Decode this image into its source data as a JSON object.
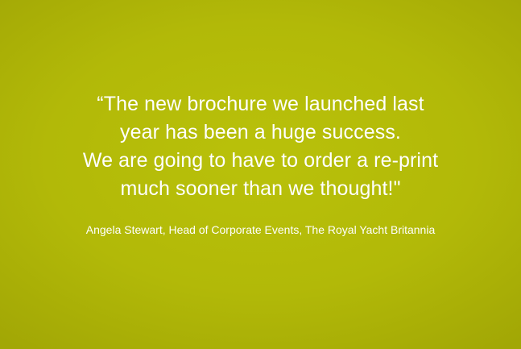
{
  "testimonial": {
    "quote_lines": [
      "“The new brochure we launched last",
      "year has been a huge success.",
      "We are going to have to order a re-print",
      "much sooner than we thought!\""
    ],
    "attribution": "Angela Stewart, Head of Corporate Events, The Royal Yacht Britannia"
  },
  "colors": {
    "background": "#b2b908",
    "text": "#ffffff"
  }
}
